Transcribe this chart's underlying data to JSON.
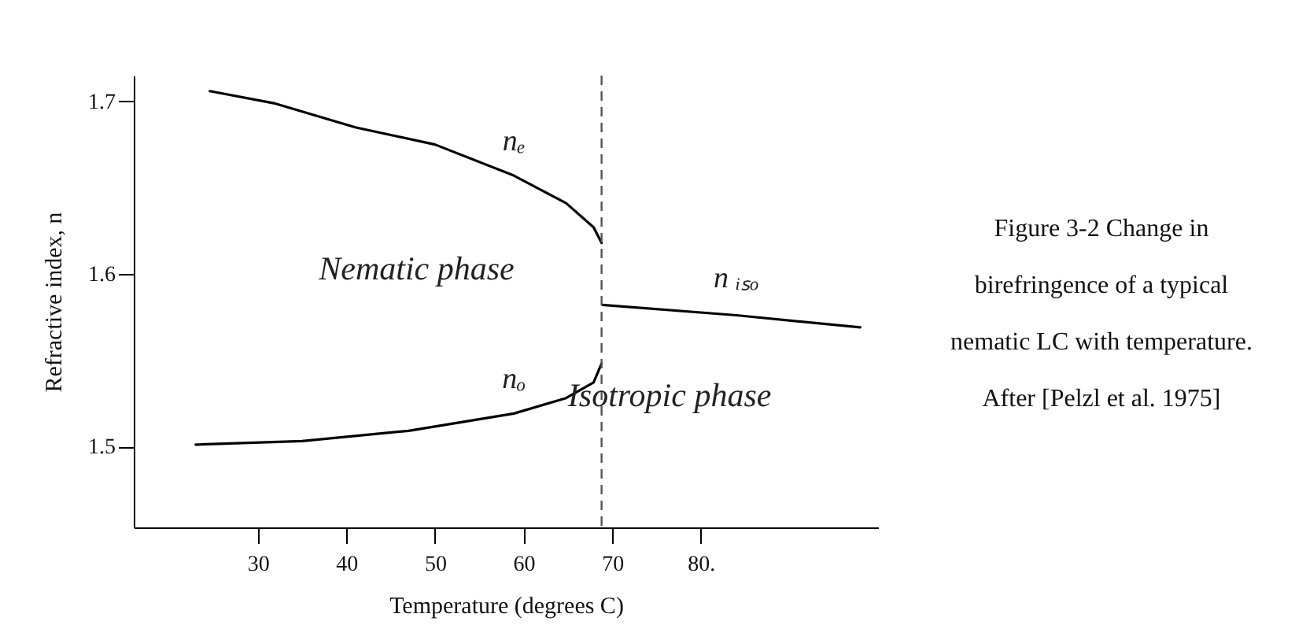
{
  "chart_data": {
    "type": "line",
    "xlabel": "Temperature (degrees C)",
    "ylabel": "Refractive index, n",
    "xlim": [
      16,
      100
    ],
    "ylim": [
      1.453,
      1.715
    ],
    "xticks": [
      30,
      40,
      50,
      60,
      70,
      {
        "value": 80,
        "label": "80."
      }
    ],
    "yticks": [
      1.5,
      1.6,
      1.7
    ],
    "grid": false,
    "legend": false,
    "marker": "none",
    "line_style": "solid",
    "series": [
      {
        "name": "nₑ",
        "color": "#000000",
        "x": [
          24.6,
          31.8,
          41,
          50,
          58.9,
          64.8,
          67.9,
          68.8
        ],
        "values": [
          1.706,
          1.699,
          1.685,
          1.675,
          1.657,
          1.641,
          1.627,
          1.618
        ]
      },
      {
        "name": "nₒ",
        "color": "#000000",
        "x": [
          23,
          35,
          47,
          58.9,
          64.8,
          67.9,
          68.8
        ],
        "values": [
          1.501,
          1.503,
          1.509,
          1.519,
          1.528,
          1.537,
          1.548
        ]
      },
      {
        "name": "n ᵢₛₒ",
        "color": "#000000",
        "x": [
          68.9,
          84,
          98
        ],
        "values": [
          1.582,
          1.576,
          1.569
        ]
      }
    ],
    "ref_lines": [
      {
        "axis": "x",
        "value": 68.8,
        "line_style": "dashed",
        "color": "#555555"
      }
    ],
    "annotations": [
      "Nematic phase",
      "Isotropic phase",
      "Figure 3-2 Change in birefringence of a typical nematic LC with temperature.  After [Pelzl et al. 1975]"
    ]
  }
}
